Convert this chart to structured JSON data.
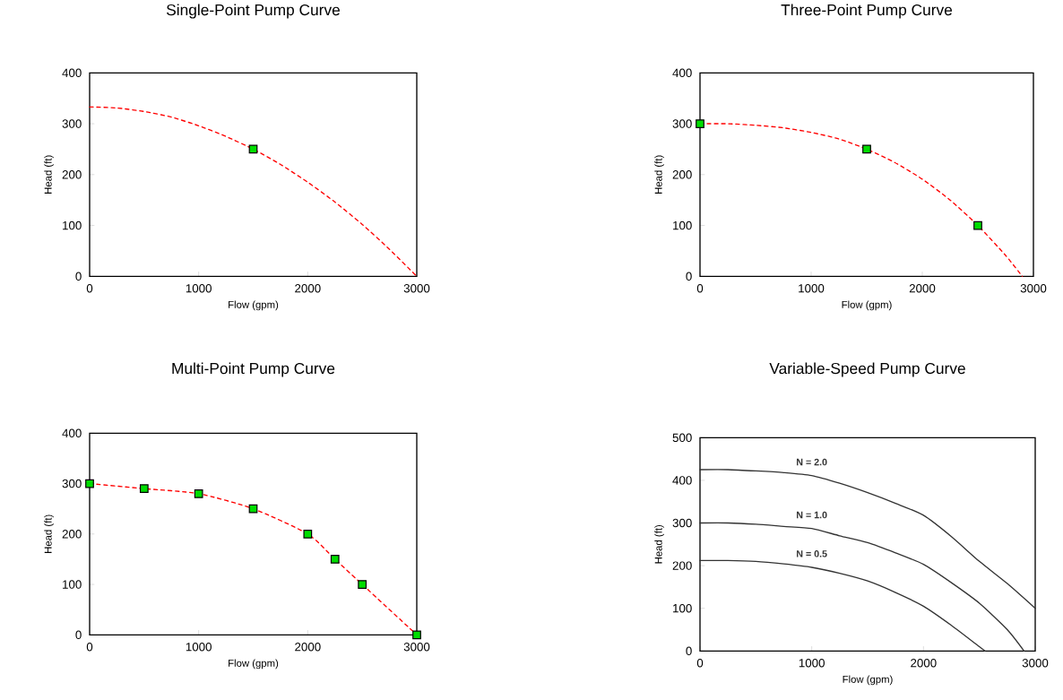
{
  "chart_data": [
    {
      "type": "line",
      "title": "Single-Point Pump Curve",
      "xlabel": "Flow (gpm)",
      "ylabel": "Head (ft)",
      "xlim": [
        0,
        3000
      ],
      "ylim": [
        0,
        400
      ],
      "xticks": [
        0,
        1000,
        2000,
        3000
      ],
      "yticks": [
        0,
        100,
        200,
        300,
        400
      ],
      "series": [
        {
          "type": "line",
          "color": "#ff0000",
          "line_style": "dashed",
          "marker": "none",
          "x": [
            0,
            250,
            500,
            750,
            1000,
            1250,
            1500,
            1750,
            2000,
            2250,
            2500,
            2750,
            3000
          ],
          "values": [
            333,
            331,
            324,
            313,
            296,
            275,
            250,
            220,
            185,
            146,
            102,
            53,
            0
          ]
        },
        {
          "type": "scatter",
          "color": "#00dd00",
          "marker": "square",
          "x": [
            1500
          ],
          "values": [
            250
          ]
        }
      ]
    },
    {
      "type": "line",
      "title": "Three-Point Pump Curve",
      "xlabel": "Flow (gpm)",
      "ylabel": "Head (ft)",
      "xlim": [
        0,
        3000
      ],
      "ylim": [
        0,
        400
      ],
      "xticks": [
        0,
        1000,
        2000,
        3000
      ],
      "yticks": [
        0,
        100,
        200,
        300,
        400
      ],
      "series": [
        {
          "type": "line",
          "color": "#ff0000",
          "line_style": "dashed",
          "marker": "none",
          "x": [
            0,
            250,
            500,
            750,
            1000,
            1250,
            1500,
            1750,
            2000,
            2250,
            2500,
            2750,
            2900
          ],
          "values": [
            300,
            300,
            297,
            292,
            283,
            270,
            250,
            224,
            191,
            150,
            100,
            41,
            0
          ]
        },
        {
          "type": "scatter",
          "color": "#00dd00",
          "marker": "square",
          "x": [
            0,
            1500,
            2500
          ],
          "values": [
            300,
            250,
            100
          ]
        }
      ]
    },
    {
      "type": "line",
      "title": "Multi-Point Pump Curve",
      "xlabel": "Flow (gpm)",
      "ylabel": "Head (ft)",
      "xlim": [
        0,
        3000
      ],
      "ylim": [
        0,
        400
      ],
      "xticks": [
        0,
        1000,
        2000,
        3000
      ],
      "yticks": [
        0,
        100,
        200,
        300,
        400
      ],
      "series": [
        {
          "type": "line",
          "color": "#ff0000",
          "line_style": "dashed",
          "marker": "none",
          "x": [
            0,
            500,
            1000,
            1500,
            2000,
            2250,
            2500,
            3000
          ],
          "values": [
            300,
            290,
            280,
            250,
            200,
            150,
            100,
            0
          ]
        },
        {
          "type": "scatter",
          "color": "#00dd00",
          "marker": "square",
          "x": [
            0,
            500,
            1000,
            1500,
            2000,
            2250,
            2500,
            3000
          ],
          "values": [
            300,
            290,
            280,
            250,
            200,
            150,
            100,
            0
          ]
        }
      ]
    },
    {
      "type": "line",
      "title": "Variable-Speed Pump Curve",
      "xlabel": "Flow (gpm)",
      "ylabel": "Head (ft)",
      "xlim": [
        0,
        3000
      ],
      "ylim": [
        0,
        500
      ],
      "xticks": [
        0,
        1000,
        2000,
        3000
      ],
      "yticks": [
        0,
        100,
        200,
        300,
        400,
        500
      ],
      "series": [
        {
          "name": "N = 2.0",
          "type": "line",
          "color": "#333333",
          "line_style": "solid",
          "marker": "none",
          "x": [
            0,
            250,
            500,
            750,
            1000,
            1250,
            1500,
            1750,
            2000,
            2250,
            2500,
            2750,
            3000
          ],
          "values": [
            425,
            425,
            422,
            418,
            411,
            393,
            371,
            346,
            318,
            268,
            210,
            158,
            100
          ]
        },
        {
          "name": "N = 1.0",
          "type": "line",
          "color": "#333333",
          "line_style": "solid",
          "marker": "none",
          "x": [
            0,
            250,
            500,
            750,
            1000,
            1250,
            1500,
            1750,
            2000,
            2250,
            2500,
            2750,
            2900
          ],
          "values": [
            300,
            300,
            297,
            292,
            287,
            270,
            254,
            230,
            203,
            160,
            112,
            50,
            0
          ]
        },
        {
          "name": "N = 0.5",
          "type": "line",
          "color": "#333333",
          "line_style": "solid",
          "marker": "none",
          "x": [
            0,
            250,
            500,
            750,
            1000,
            1250,
            1500,
            1750,
            2000,
            2250,
            2500,
            2550
          ],
          "values": [
            212,
            212,
            210,
            204,
            196,
            182,
            164,
            137,
            105,
            60,
            10,
            0
          ]
        }
      ]
    }
  ]
}
